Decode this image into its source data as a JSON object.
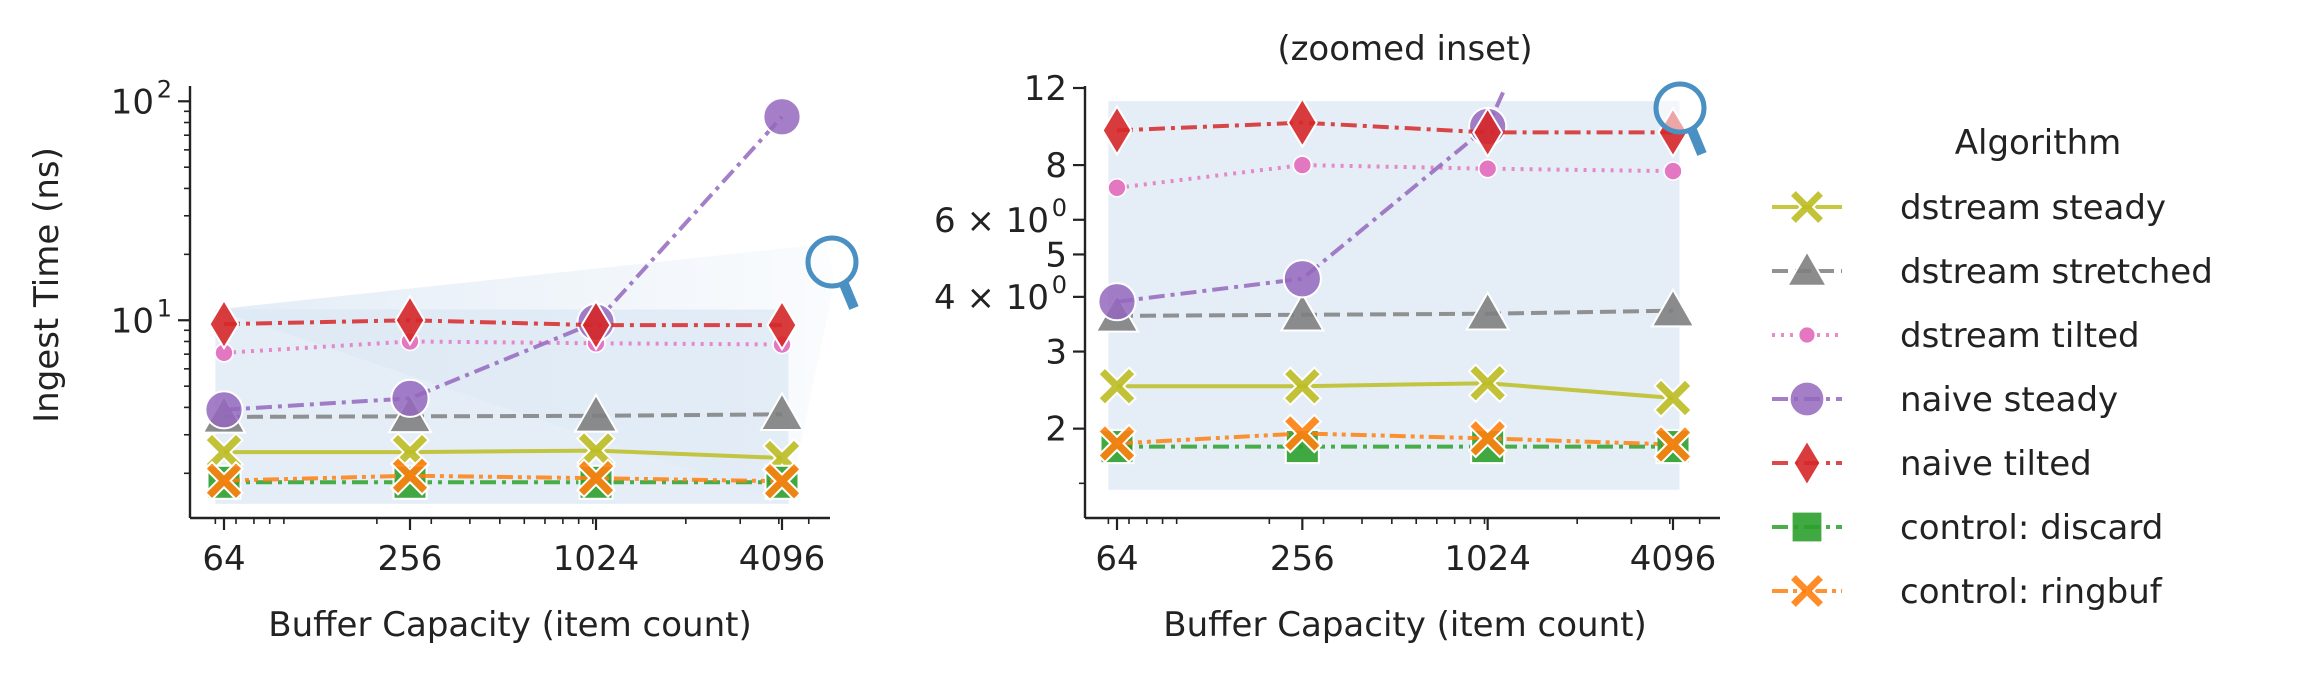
{
  "chart_data": [
    {
      "type": "line",
      "title": "",
      "xlabel": "Buffer Capacity (item count)",
      "ylabel": "Ingest Time (ns)",
      "x_scale": "log2",
      "y_scale": "log10",
      "x": [
        64,
        256,
        1024,
        4096
      ],
      "x_tick_labels": [
        "64",
        "256",
        "1024",
        "4096"
      ],
      "ylim": [
        1.25,
        115
      ],
      "y_tick_labels": [
        {
          "value": 10,
          "mantissa": "10",
          "exp": "1"
        },
        {
          "value": 100,
          "mantissa": "10",
          "exp": "2"
        }
      ],
      "inset_region": {
        "xlim": [
          60,
          4300
        ],
        "ylim": [
          1.45,
          11.2
        ]
      },
      "series": [
        {
          "name": "dstream steady",
          "values": [
            2.5,
            2.5,
            2.54,
            2.35
          ]
        },
        {
          "name": "dstream stretched",
          "values": [
            3.62,
            3.64,
            3.66,
            3.72
          ]
        },
        {
          "name": "dstream tilted",
          "values": [
            7.1,
            8.0,
            7.85,
            7.75
          ]
        },
        {
          "name": "naive steady",
          "values": [
            3.9,
            4.4,
            9.8,
            85
          ]
        },
        {
          "name": "naive tilted",
          "values": [
            9.6,
            10.0,
            9.5,
            9.5
          ]
        },
        {
          "name": "control: discard",
          "values": [
            1.82,
            1.82,
            1.82,
            1.82
          ]
        },
        {
          "name": "control: ringbuf",
          "values": [
            1.85,
            1.95,
            1.9,
            1.84
          ]
        }
      ]
    },
    {
      "type": "line",
      "title": "(zoomed inset)",
      "xlabel": "Buffer Capacity (item count)",
      "ylabel": "",
      "x_scale": "log2",
      "y_scale": "log10",
      "x": [
        64,
        256,
        1024,
        4096
      ],
      "x_tick_labels": [
        "64",
        "256",
        "1024",
        "4096"
      ],
      "ylim": [
        1.25,
        12
      ],
      "y_tick_labels": [
        {
          "value": 2,
          "text": "2"
        },
        {
          "value": 3,
          "text": "3"
        },
        {
          "value": 4,
          "mantissa": "4 × 10",
          "exp": "0"
        },
        {
          "value": 5,
          "text": "5"
        },
        {
          "value": 6,
          "mantissa": "6 × 10",
          "exp": "0"
        },
        {
          "value": 8,
          "text": "8"
        },
        {
          "value": 12,
          "text": "12"
        }
      ],
      "series_ref": "same as panel 1, values above 12 clipped"
    }
  ],
  "legend": {
    "title": "Algorithm",
    "placement": "right",
    "entries": [
      {
        "label": "dstream steady",
        "color": "#bcbd22",
        "marker": "x",
        "dash": "solid"
      },
      {
        "label": "dstream stretched",
        "color": "#7f7f7f",
        "marker": "triangle",
        "dash": "dashed"
      },
      {
        "label": "dstream tilted",
        "color": "#e377c2",
        "marker": "dot",
        "dash": "dotted"
      },
      {
        "label": "naive steady",
        "color": "#9467bd",
        "marker": "circle",
        "dash": "dashdot"
      },
      {
        "label": "naive tilted",
        "color": "#d62728",
        "marker": "diamond",
        "dash": "dashdot"
      },
      {
        "label": "control: discard",
        "color": "#2ca02c",
        "marker": "square",
        "dash": "dashdot"
      },
      {
        "label": "control: ringbuf",
        "color": "#ff7f0e",
        "marker": "x",
        "dash": "dashdotdot"
      }
    ]
  },
  "inset_shading_color": "#dce8f4",
  "magnifier_icon": "magnifier-icon",
  "magnifier_color": "#4a90c2"
}
